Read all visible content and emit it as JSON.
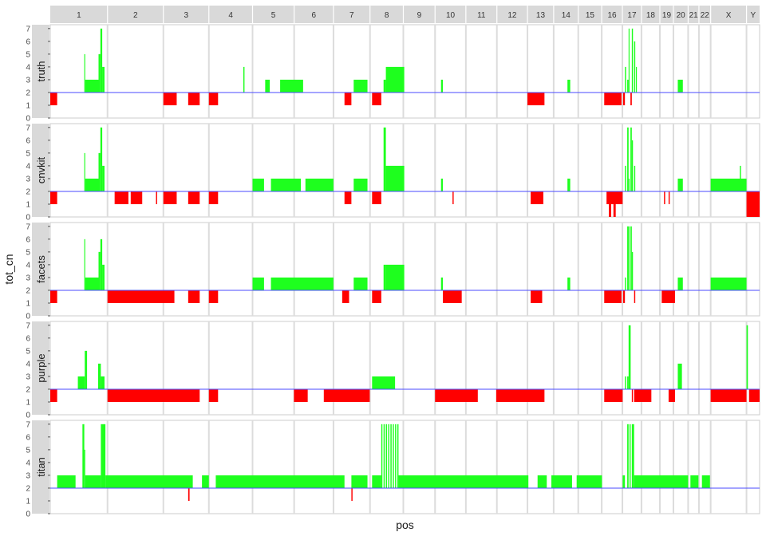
{
  "chart_data": {
    "type": "bar",
    "xlabel": "pos",
    "ylabel": "tot_cn",
    "ylim": [
      0,
      7.3
    ],
    "yticks": [
      0,
      1,
      2,
      3,
      4,
      5,
      6,
      7
    ],
    "baseline": 2,
    "colors": {
      "gain": "#1eff1e",
      "loss": "#ff0000",
      "baseline": "#4a4aff",
      "strip": "#d9d9d9",
      "panel_bg": "#ffffff",
      "gridline": "#dcdcdc",
      "border": "#cccccc"
    },
    "chromosomes": [
      {
        "label": "1",
        "start": 0,
        "end": 249
      },
      {
        "label": "2",
        "start": 249,
        "end": 492
      },
      {
        "label": "3",
        "start": 492,
        "end": 690
      },
      {
        "label": "4",
        "start": 690,
        "end": 880
      },
      {
        "label": "5",
        "start": 880,
        "end": 1061
      },
      {
        "label": "6",
        "start": 1061,
        "end": 1232
      },
      {
        "label": "7",
        "start": 1232,
        "end": 1391
      },
      {
        "label": "8",
        "start": 1391,
        "end": 1536
      },
      {
        "label": "9",
        "start": 1536,
        "end": 1674
      },
      {
        "label": "10",
        "start": 1674,
        "end": 1808
      },
      {
        "label": "11",
        "start": 1808,
        "end": 1943
      },
      {
        "label": "12",
        "start": 1943,
        "end": 2076
      },
      {
        "label": "13",
        "start": 2076,
        "end": 2190
      },
      {
        "label": "14",
        "start": 2190,
        "end": 2297
      },
      {
        "label": "15",
        "start": 2297,
        "end": 2399
      },
      {
        "label": "16",
        "start": 2399,
        "end": 2489
      },
      {
        "label": "17",
        "start": 2489,
        "end": 2572
      },
      {
        "label": "18",
        "start": 2572,
        "end": 2652
      },
      {
        "label": "19",
        "start": 2652,
        "end": 2711
      },
      {
        "label": "20",
        "start": 2711,
        "end": 2775
      },
      {
        "label": "21",
        "start": 2775,
        "end": 2822
      },
      {
        "label": "22",
        "start": 2822,
        "end": 2873
      },
      {
        "label": "X",
        "start": 2873,
        "end": 3029
      },
      {
        "label": "Y",
        "start": 3029,
        "end": 3086
      }
    ],
    "panels": [
      {
        "label": "truth",
        "segments": [
          [
            0,
            30,
            1
          ],
          [
            148,
            152,
            5
          ],
          [
            152,
            210,
            3
          ],
          [
            210,
            218,
            5
          ],
          [
            218,
            226,
            7
          ],
          [
            226,
            236,
            4
          ],
          [
            492,
            550,
            1
          ],
          [
            600,
            650,
            1
          ],
          [
            690,
            730,
            1
          ],
          [
            840,
            845,
            4
          ],
          [
            935,
            955,
            3
          ],
          [
            1000,
            1100,
            3
          ],
          [
            1280,
            1310,
            1
          ],
          [
            1320,
            1380,
            3
          ],
          [
            1400,
            1440,
            1
          ],
          [
            1450,
            1460,
            3
          ],
          [
            1460,
            1540,
            4
          ],
          [
            1700,
            1708,
            3
          ],
          [
            2076,
            2150,
            1
          ],
          [
            2250,
            2262,
            3
          ],
          [
            2410,
            2485,
            1
          ],
          [
            2492,
            2500,
            1
          ],
          [
            2500,
            2505,
            4
          ],
          [
            2510,
            2516,
            3
          ],
          [
            2516,
            2520,
            7
          ],
          [
            2524,
            2530,
            1
          ],
          [
            2530,
            2535,
            7
          ],
          [
            2540,
            2545,
            6
          ],
          [
            2548,
            2552,
            4
          ],
          [
            2730,
            2752,
            3
          ]
        ]
      },
      {
        "label": "cnvkit",
        "segments": [
          [
            0,
            30,
            1
          ],
          [
            148,
            152,
            5
          ],
          [
            152,
            210,
            3
          ],
          [
            210,
            218,
            5
          ],
          [
            218,
            226,
            7
          ],
          [
            226,
            236,
            4
          ],
          [
            280,
            340,
            1
          ],
          [
            350,
            400,
            1
          ],
          [
            460,
            465,
            1
          ],
          [
            492,
            550,
            1
          ],
          [
            600,
            650,
            1
          ],
          [
            690,
            730,
            1
          ],
          [
            880,
            930,
            3
          ],
          [
            960,
            1090,
            3
          ],
          [
            1110,
            1232,
            3
          ],
          [
            1280,
            1310,
            1
          ],
          [
            1320,
            1380,
            3
          ],
          [
            1400,
            1440,
            1
          ],
          [
            1450,
            1460,
            7
          ],
          [
            1460,
            1540,
            4
          ],
          [
            1700,
            1708,
            3
          ],
          [
            1750,
            1755,
            1
          ],
          [
            2090,
            2145,
            1
          ],
          [
            2250,
            2262,
            3
          ],
          [
            2420,
            2490,
            1
          ],
          [
            2430,
            2440,
            0
          ],
          [
            2450,
            2460,
            0
          ],
          [
            2500,
            2505,
            4
          ],
          [
            2510,
            2516,
            7
          ],
          [
            2516,
            2520,
            3
          ],
          [
            2524,
            2530,
            7
          ],
          [
            2530,
            2535,
            6
          ],
          [
            2540,
            2545,
            4
          ],
          [
            2670,
            2675,
            1
          ],
          [
            2690,
            2695,
            1
          ],
          [
            2730,
            2752,
            3
          ],
          [
            2873,
            3029,
            3
          ],
          [
            3000,
            3005,
            4
          ],
          [
            3029,
            3086,
            0
          ]
        ]
      },
      {
        "label": "facets",
        "segments": [
          [
            0,
            30,
            1
          ],
          [
            148,
            152,
            6
          ],
          [
            152,
            210,
            3
          ],
          [
            210,
            218,
            5
          ],
          [
            218,
            226,
            6
          ],
          [
            226,
            236,
            4
          ],
          [
            249,
            540,
            1
          ],
          [
            600,
            650,
            1
          ],
          [
            690,
            730,
            1
          ],
          [
            880,
            930,
            3
          ],
          [
            960,
            1232,
            3
          ],
          [
            1270,
            1300,
            1
          ],
          [
            1320,
            1380,
            3
          ],
          [
            1400,
            1440,
            1
          ],
          [
            1450,
            1460,
            4
          ],
          [
            1460,
            1540,
            4
          ],
          [
            1700,
            1708,
            3
          ],
          [
            1708,
            1790,
            1
          ],
          [
            2090,
            2140,
            1
          ],
          [
            2250,
            2262,
            3
          ],
          [
            2410,
            2485,
            1
          ],
          [
            2492,
            2500,
            1
          ],
          [
            2500,
            2505,
            3
          ],
          [
            2510,
            2516,
            7
          ],
          [
            2516,
            2520,
            7
          ],
          [
            2524,
            2530,
            7
          ],
          [
            2530,
            2535,
            5
          ],
          [
            2540,
            2545,
            1
          ],
          [
            2660,
            2718,
            1
          ],
          [
            2730,
            2752,
            3
          ],
          [
            2873,
            3029,
            3
          ]
        ]
      },
      {
        "label": "purple",
        "segments": [
          [
            0,
            30,
            1
          ],
          [
            120,
            150,
            3
          ],
          [
            150,
            160,
            5
          ],
          [
            160,
            208,
            2
          ],
          [
            208,
            220,
            4
          ],
          [
            220,
            236,
            3
          ],
          [
            249,
            650,
            1
          ],
          [
            690,
            730,
            1
          ],
          [
            1060,
            1120,
            1
          ],
          [
            1190,
            1390,
            1
          ],
          [
            1400,
            1500,
            3
          ],
          [
            1674,
            1860,
            1
          ],
          [
            1940,
            2150,
            1
          ],
          [
            2410,
            2490,
            1
          ],
          [
            2500,
            2505,
            3
          ],
          [
            2510,
            2516,
            3
          ],
          [
            2516,
            2525,
            7
          ],
          [
            2530,
            2535,
            1
          ],
          [
            2540,
            2615,
            1
          ],
          [
            2690,
            2718,
            1
          ],
          [
            2730,
            2748,
            4
          ],
          [
            2873,
            3029,
            1
          ],
          [
            3029,
            3035,
            7
          ],
          [
            3040,
            3086,
            1
          ]
        ]
      },
      {
        "label": "titan",
        "segments": [
          [
            30,
            110,
            3
          ],
          [
            140,
            148,
            7
          ],
          [
            148,
            152,
            5
          ],
          [
            152,
            220,
            3
          ],
          [
            220,
            240,
            7
          ],
          [
            240,
            620,
            3
          ],
          [
            660,
            690,
            3
          ],
          [
            720,
            1280,
            3
          ],
          [
            1310,
            1380,
            3
          ],
          [
            1400,
            1440,
            3
          ],
          [
            1440,
            1445,
            7
          ],
          [
            1450,
            1455,
            7
          ],
          [
            1460,
            1465,
            7
          ],
          [
            1470,
            1475,
            7
          ],
          [
            1480,
            1485,
            7
          ],
          [
            1490,
            1495,
            7
          ],
          [
            1500,
            1505,
            7
          ],
          [
            1510,
            1515,
            7
          ],
          [
            1515,
            2080,
            3
          ],
          [
            2120,
            2160,
            3
          ],
          [
            2180,
            2270,
            3
          ],
          [
            2290,
            2400,
            3
          ],
          [
            2490,
            2500,
            3
          ],
          [
            2510,
            2516,
            7
          ],
          [
            2520,
            2525,
            7
          ],
          [
            2530,
            2540,
            7
          ],
          [
            2540,
            2775,
            3
          ],
          [
            2785,
            2820,
            3
          ],
          [
            2835,
            2870,
            3
          ],
          [
            600,
            606,
            1
          ],
          [
            1310,
            1315,
            1
          ]
        ]
      }
    ]
  }
}
